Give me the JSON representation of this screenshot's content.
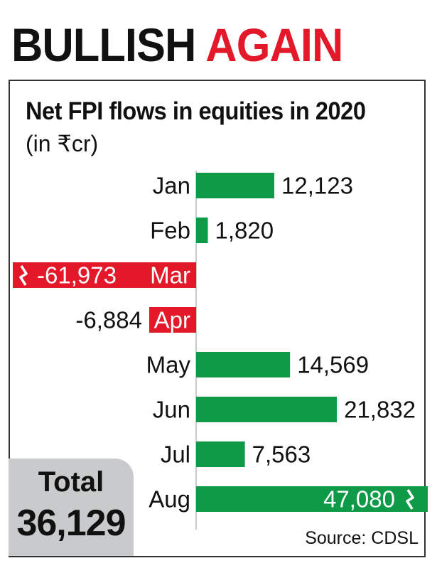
{
  "headline": {
    "word1": "BULLISH",
    "word2": "AGAIN"
  },
  "total": {
    "label": "Total",
    "value": "36,129"
  },
  "source": "Source: CDSL",
  "colors": {
    "positive": "#0f9a48",
    "negative": "#e3192a",
    "headline_red": "#e3192a",
    "total_bg": "#c9cacb"
  },
  "chart_data": {
    "type": "bar",
    "orientation": "horizontal",
    "title": "Net FPI flows in equities in 2020",
    "subtitle": "(in ₹cr)",
    "categories": [
      "Jan",
      "Feb",
      "Mar",
      "Apr",
      "May",
      "Jun",
      "Jul",
      "Aug"
    ],
    "values": [
      12123,
      1820,
      -61973,
      -6884,
      14569,
      21832,
      7563,
      47080
    ],
    "value_labels": [
      "12,123",
      "1,820",
      "-61,973",
      "-6,884",
      "14,569",
      "21,832",
      "7,563",
      "47,080"
    ],
    "truncated": [
      false,
      false,
      true,
      false,
      false,
      false,
      false,
      true
    ]
  }
}
